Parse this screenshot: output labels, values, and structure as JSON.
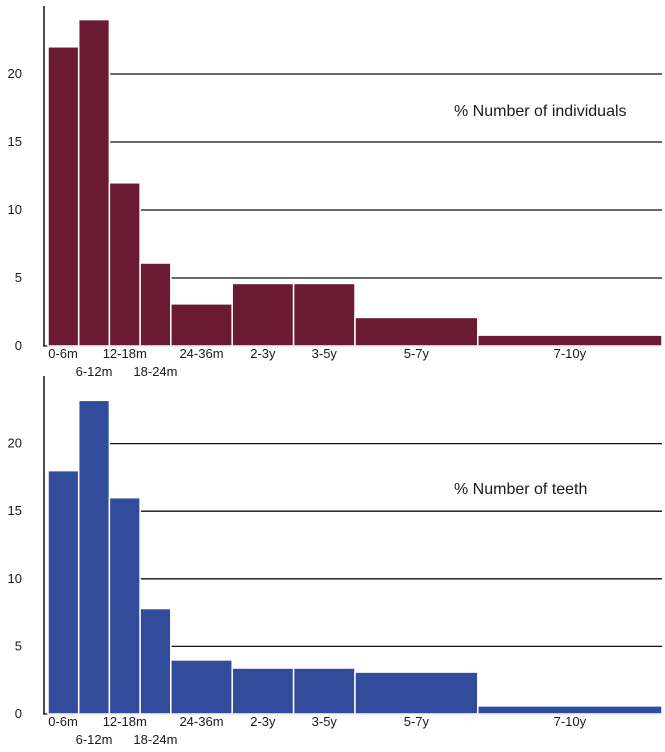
{
  "chart_data": [
    {
      "type": "bar",
      "title": "% Number of individuals",
      "categories": [
        "0-6m",
        "6-12m",
        "12-18m",
        "18-24m",
        "24-36m",
        "2-3y",
        "3-5y",
        "5-7y",
        "7-10y"
      ],
      "bin_widths": [
        1,
        1,
        1,
        1,
        2,
        2,
        2,
        4,
        6
      ],
      "values": [
        22,
        24,
        12,
        6.1,
        3.1,
        4.6,
        4.6,
        2.1,
        0.8
      ],
      "ylim": [
        0,
        25
      ],
      "yticks": [
        0,
        5,
        10,
        15,
        20
      ],
      "grid": true,
      "color": "#6b1a33"
    },
    {
      "type": "bar",
      "title": "% Number of teeth",
      "categories": [
        "0-6m",
        "6-12m",
        "12-18m",
        "18-24m",
        "24-36m",
        "2-3y",
        "3-5y",
        "5-7y",
        "7-10y"
      ],
      "bin_widths": [
        1,
        1,
        1,
        1,
        2,
        2,
        2,
        4,
        6
      ],
      "values": [
        18,
        23.2,
        16,
        7.8,
        4,
        3.4,
        3.4,
        3.1,
        0.6
      ],
      "ylim": [
        0,
        25
      ],
      "yticks": [
        0,
        5,
        10,
        15,
        20
      ],
      "grid": true,
      "color": "#324b9b"
    }
  ]
}
